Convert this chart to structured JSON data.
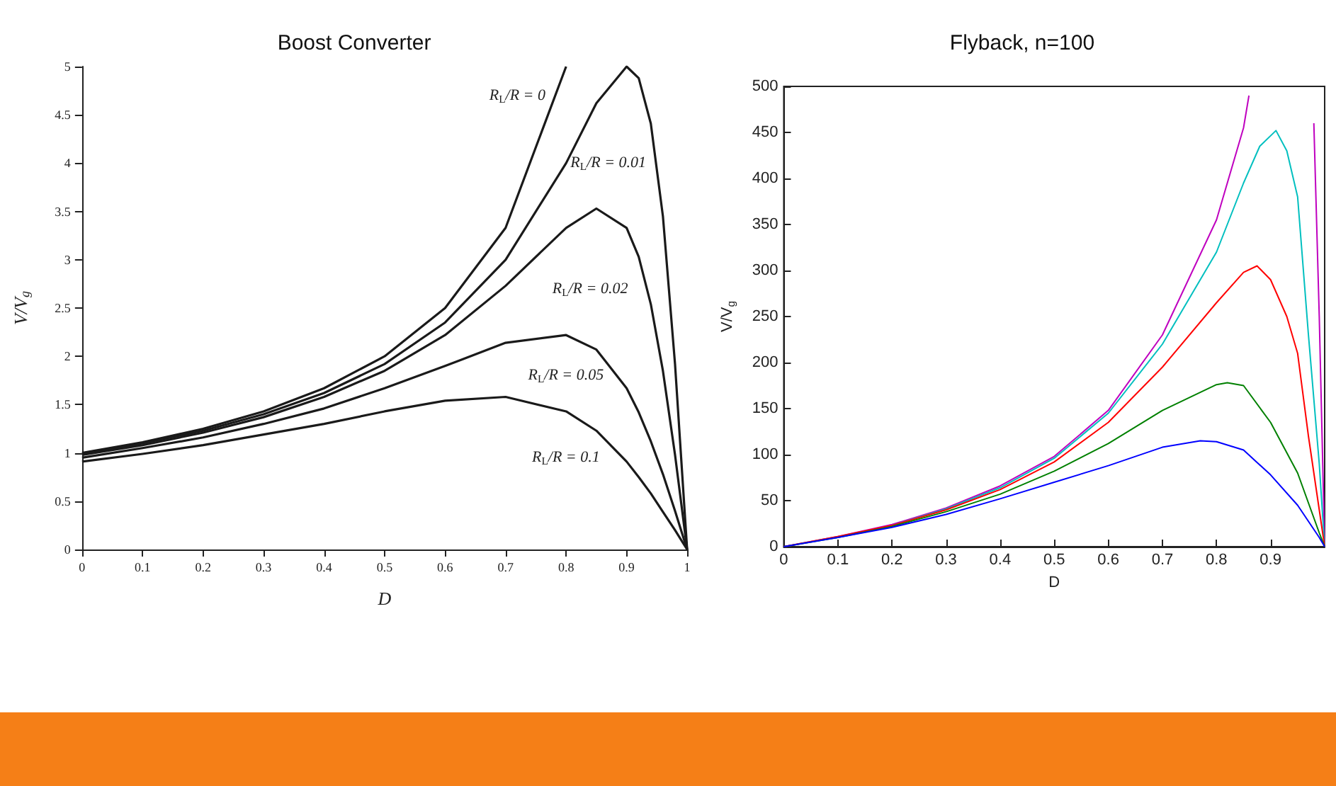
{
  "chart_data": [
    {
      "type": "line",
      "title": "Boost Converter",
      "xlabel": "D",
      "ylabel": "V/V$_{g}$",
      "grid": false,
      "marker": "none",
      "line_style": "solid",
      "x": [
        0,
        0.1,
        0.2,
        0.3,
        0.4,
        0.5,
        0.6,
        0.7,
        0.8,
        0.85,
        0.9,
        0.92,
        0.94,
        0.96,
        0.98,
        1
      ],
      "series": [
        {
          "color": "#1a1a1a",
          "values": [
            1,
            1.11,
            1.25,
            1.43,
            1.67,
            2,
            2.5,
            3.33,
            5,
            null,
            null,
            null,
            null,
            null,
            null,
            null
          ]
        },
        {
          "color": "#1a1a1a",
          "values": [
            0.99,
            1.1,
            1.23,
            1.4,
            1.62,
            1.92,
            2.35,
            3,
            4,
            4.62,
            5,
            4.88,
            4.41,
            3.45,
            1.92,
            0
          ]
        },
        {
          "color": "#1a1a1a",
          "values": [
            0.98,
            1.08,
            1.21,
            1.37,
            1.58,
            1.85,
            2.22,
            2.73,
            3.33,
            3.53,
            3.33,
            3.03,
            2.54,
            1.85,
            0.98,
            0
          ]
        },
        {
          "color": "#1a1a1a",
          "values": [
            0.95,
            1.05,
            1.16,
            1.3,
            1.46,
            1.67,
            1.9,
            2.14,
            2.22,
            2.07,
            1.67,
            1.42,
            1.12,
            0.78,
            0.4,
            0
          ]
        },
        {
          "color": "#1a1a1a",
          "values": [
            0.91,
            0.99,
            1.08,
            1.19,
            1.3,
            1.43,
            1.54,
            1.58,
            1.43,
            1.23,
            0.91,
            0.75,
            0.58,
            0.39,
            0.2,
            0
          ]
        }
      ],
      "xlim": [
        0,
        1
      ],
      "ylim": [
        0,
        5
      ],
      "xticks": [
        0,
        0.1,
        0.2,
        0.3,
        0.4,
        0.5,
        0.6,
        0.7,
        0.8,
        0.9,
        1
      ],
      "yticks": [
        0,
        0.5,
        1,
        1.5,
        2,
        2.5,
        3,
        3.5,
        4,
        4.5,
        5
      ],
      "annotations": [
        "R$_{L}$/R = 0",
        "R$_{L}$/R = 0.01",
        "R$_{L}$/R = 0.02",
        "R$_{L}$/R = 0.05",
        "R$_{L}$/R = 0.1"
      ]
    },
    {
      "type": "line",
      "title": "Flyback, n=100",
      "xlabel": "D",
      "ylabel": "V/V$_{g}$",
      "grid": false,
      "marker": "none",
      "line_style": "solid",
      "series": [
        {
          "color": "#bf00bf",
          "x": [
            0,
            0.1,
            0.2,
            0.3,
            0.4,
            0.5,
            0.6,
            0.7,
            0.8,
            0.85,
            0.86,
            0.9,
            0.95,
            0.98,
            0.99,
            1
          ],
          "values": [
            0,
            11,
            24,
            42,
            66,
            98,
            148,
            230,
            355,
            455,
            490,
            null,
            null,
            460,
            250,
            0
          ]
        },
        {
          "color": "#00bfbf",
          "x": [
            0.2,
            0.3,
            0.4,
            0.5,
            0.6,
            0.7,
            0.8,
            0.85,
            0.88,
            0.91,
            0.93,
            0.95,
            0.97,
            0.99,
            1
          ],
          "values": [
            23,
            41,
            64,
            96,
            145,
            220,
            320,
            395,
            435,
            452,
            430,
            380,
            230,
            90,
            0
          ]
        },
        {
          "color": "#ff0000",
          "x": [
            0,
            0.1,
            0.2,
            0.3,
            0.4,
            0.5,
            0.6,
            0.7,
            0.8,
            0.85,
            0.875,
            0.9,
            0.93,
            0.95,
            0.97,
            0.99,
            1
          ],
          "values": [
            0,
            11,
            23,
            40,
            62,
            92,
            135,
            195,
            265,
            298,
            305,
            290,
            250,
            210,
            120,
            40,
            0
          ]
        },
        {
          "color": "#008000",
          "x": [
            0,
            0.1,
            0.2,
            0.3,
            0.4,
            0.5,
            0.6,
            0.7,
            0.8,
            0.82,
            0.85,
            0.9,
            0.95,
            0.99,
            1
          ],
          "values": [
            0,
            10,
            22,
            38,
            57,
            82,
            112,
            148,
            176,
            178,
            175,
            135,
            80,
            15,
            0
          ]
        },
        {
          "color": "#0000ff",
          "x": [
            0,
            0.1,
            0.2,
            0.3,
            0.4,
            0.5,
            0.6,
            0.7,
            0.77,
            0.8,
            0.85,
            0.9,
            0.95,
            0.99,
            1
          ],
          "values": [
            0,
            10,
            21,
            35,
            52,
            70,
            88,
            108,
            115,
            114,
            105,
            78,
            45,
            10,
            0
          ]
        }
      ],
      "xlim": [
        0,
        1
      ],
      "ylim": [
        0,
        500
      ],
      "xticks": [
        0,
        0.1,
        0.2,
        0.3,
        0.4,
        0.5,
        0.6,
        0.7,
        0.8,
        0.9
      ],
      "yticks": [
        0,
        50,
        100,
        150,
        200,
        250,
        300,
        350,
        400,
        450,
        500
      ]
    }
  ]
}
